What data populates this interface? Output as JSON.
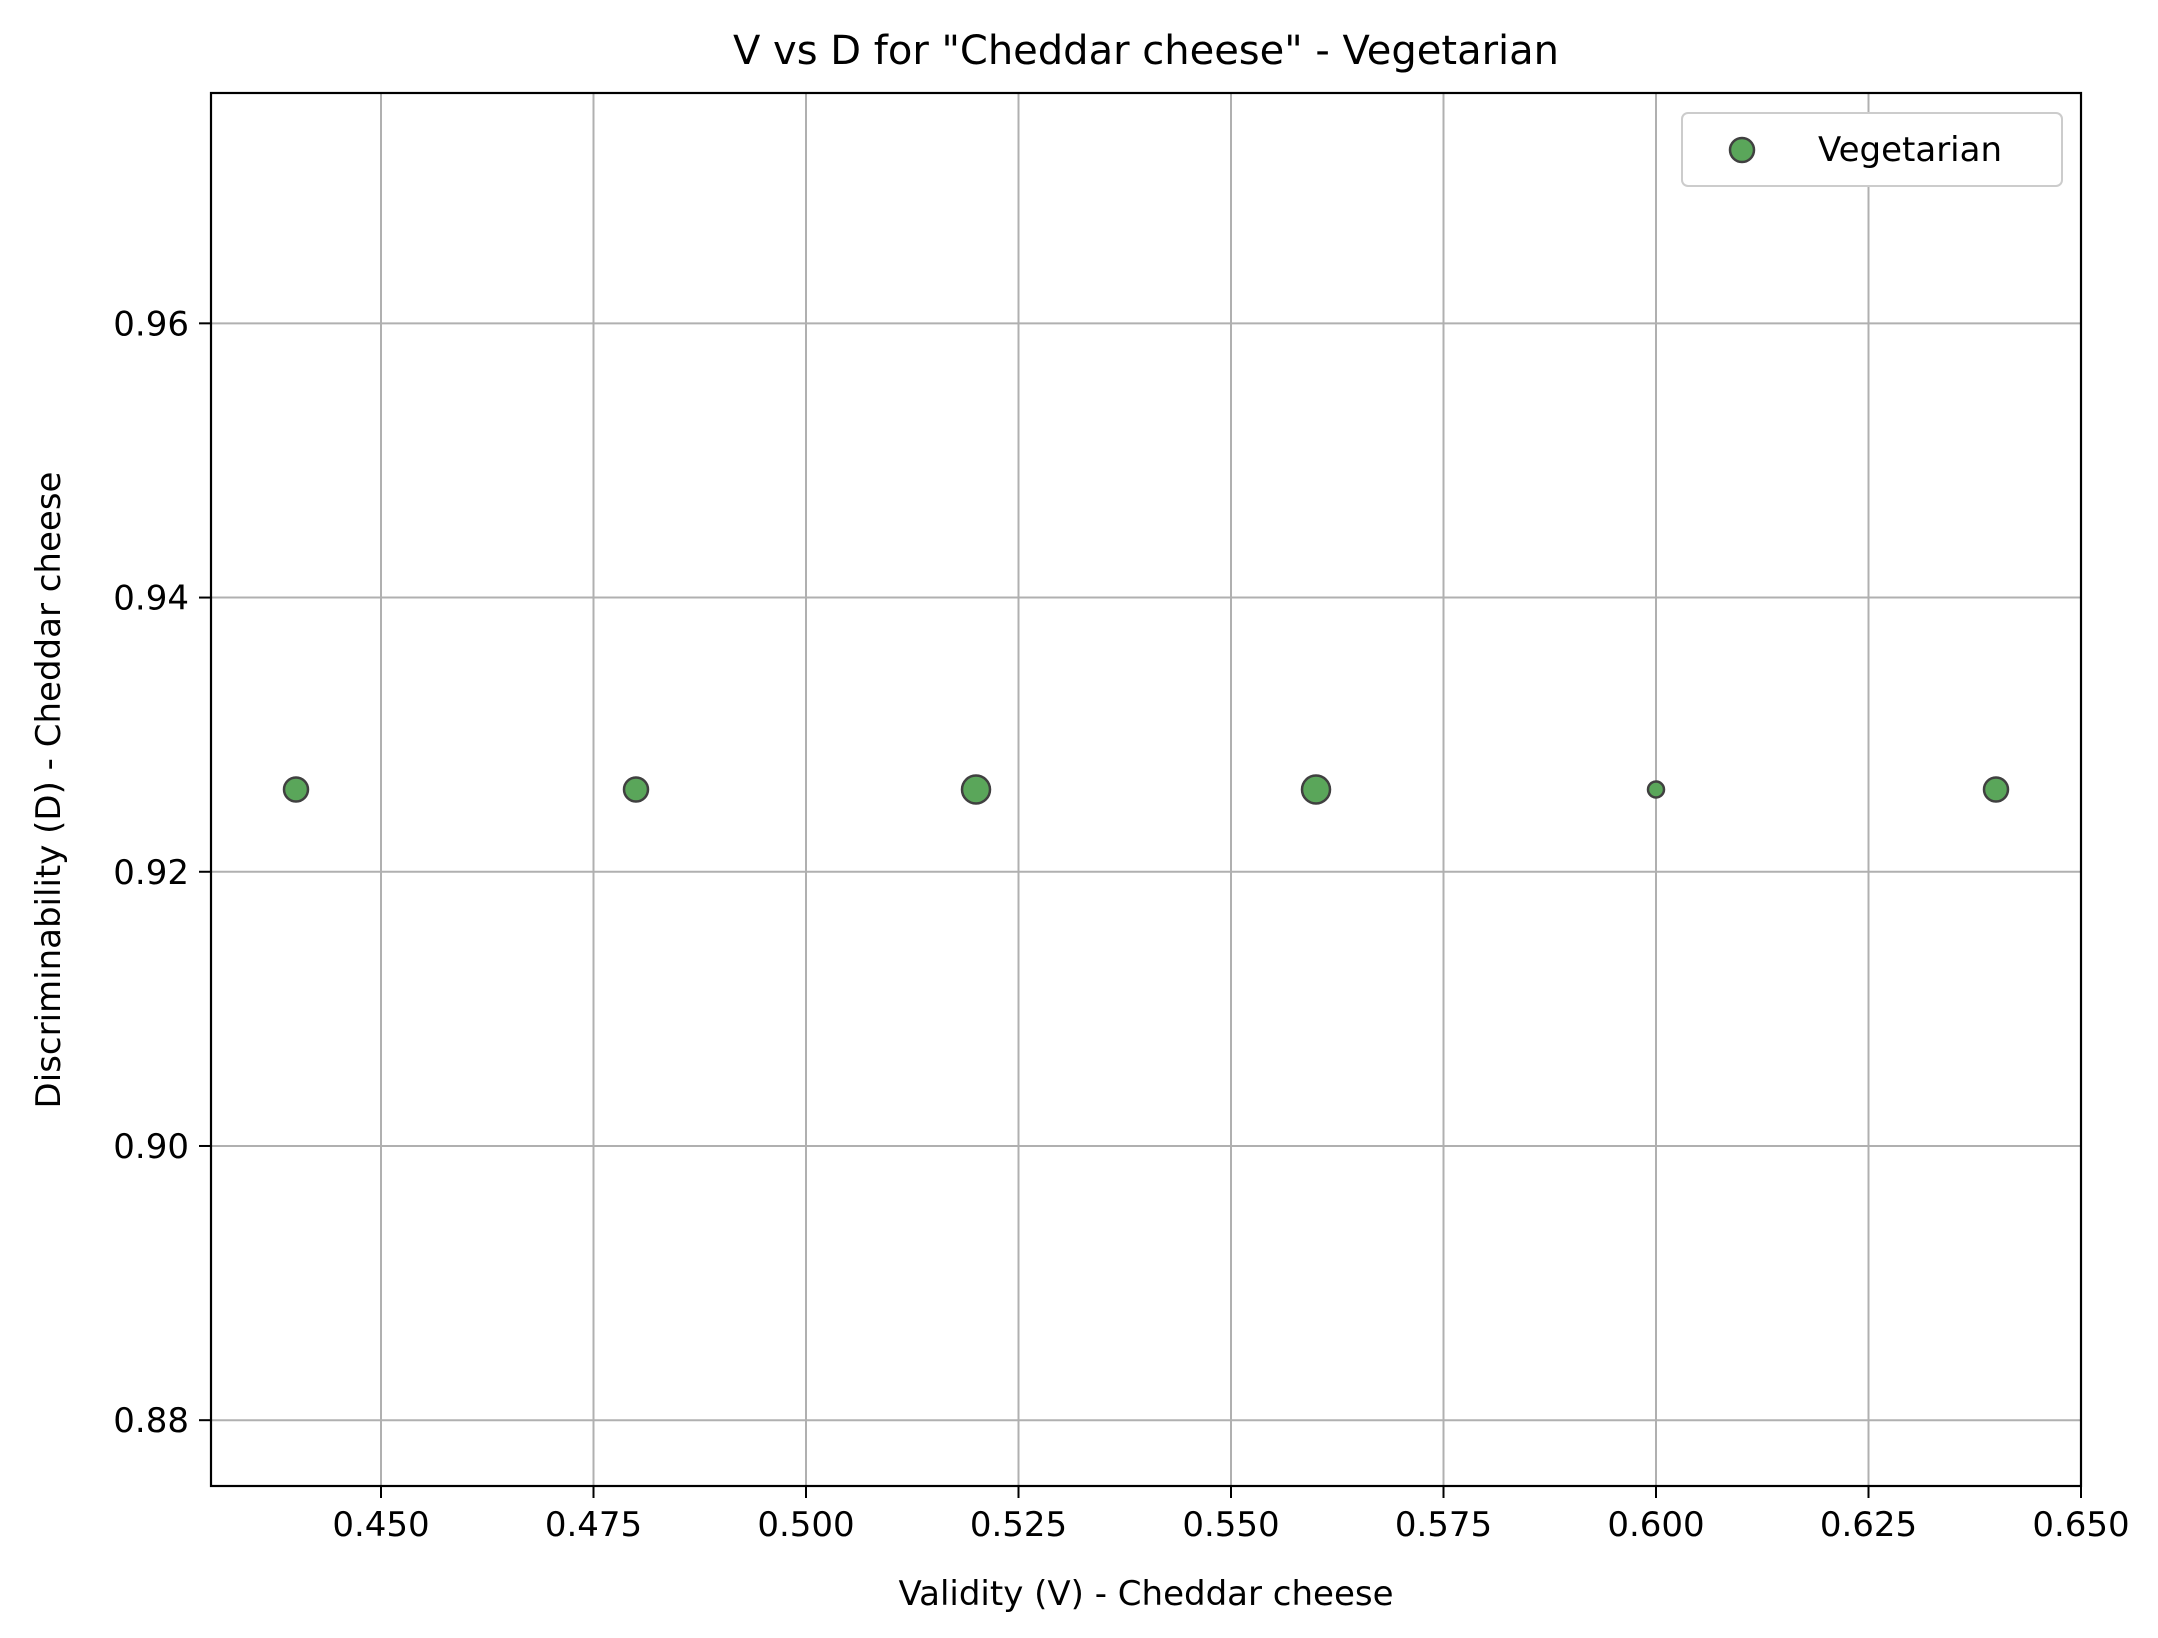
{
  "chart_data": {
    "type": "scatter",
    "title": "V vs D for \"Cheddar cheese\" - Vegetarian",
    "xlabel": "Validity (V) - Cheddar cheese",
    "ylabel": "Discriminability (D) - Cheddar cheese",
    "xlim": [
      0.43,
      0.65
    ],
    "ylim": [
      0.8752,
      0.9768
    ],
    "xticks": [
      0.45,
      0.475,
      0.5,
      0.525,
      0.55,
      0.575,
      0.6,
      0.625,
      0.65
    ],
    "xtick_labels": [
      "0.450",
      "0.475",
      "0.500",
      "0.525",
      "0.550",
      "0.575",
      "0.600",
      "0.625",
      "0.650"
    ],
    "yticks": [
      0.88,
      0.9,
      0.92,
      0.94,
      0.96
    ],
    "ytick_labels": [
      "0.88",
      "0.90",
      "0.92",
      "0.94",
      "0.96"
    ],
    "grid": true,
    "legend_position": "top-right",
    "series": [
      {
        "name": "Vegetarian",
        "color": "#5aa65a",
        "edge_color": "#404040",
        "points": [
          {
            "x": 0.44,
            "y": 0.926,
            "size": 2
          },
          {
            "x": 0.48,
            "y": 0.926,
            "size": 2
          },
          {
            "x": 0.52,
            "y": 0.926,
            "size": 3
          },
          {
            "x": 0.56,
            "y": 0.926,
            "size": 3
          },
          {
            "x": 0.6,
            "y": 0.926,
            "size": 1
          },
          {
            "x": 0.64,
            "y": 0.926,
            "size": 2
          }
        ]
      }
    ]
  }
}
